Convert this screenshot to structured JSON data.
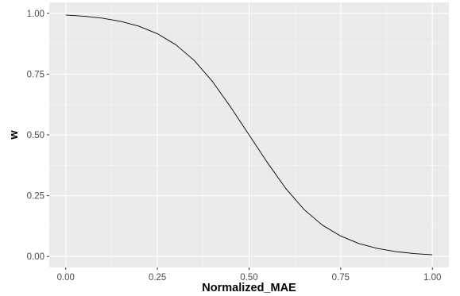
{
  "chart_data": {
    "type": "line",
    "title": "",
    "xlabel": "Normalized_MAE",
    "ylabel": "w",
    "xlim": [
      -0.045,
      1.045
    ],
    "ylim": [
      -0.045,
      1.045
    ],
    "x_ticks": [
      0,
      0.25,
      0.5,
      0.75,
      1
    ],
    "x_tick_labels": [
      "0.00",
      "0.25",
      "0.50",
      "0.75",
      "1.00"
    ],
    "y_ticks": [
      0,
      0.25,
      0.5,
      0.75,
      1
    ],
    "y_tick_labels": [
      "0.00",
      "0.25",
      "0.50",
      "0.75",
      "1.00"
    ],
    "grid": true,
    "legend": "none",
    "colors": {
      "panel_background": "#ebebeb",
      "grid_major": "#ffffff",
      "grid_minor": "#f5f5f5",
      "line": "#000000",
      "tick_label": "#4d4d4d",
      "tick_mark": "#333333"
    },
    "series": [
      {
        "x": [
          0,
          0.05,
          0.1,
          0.15,
          0.2,
          0.25,
          0.3,
          0.35,
          0.4,
          0.45,
          0.5,
          0.55,
          0.6,
          0.65,
          0.7,
          0.75,
          0.8,
          0.85,
          0.9,
          0.95,
          1
        ],
        "y": [
          0.993,
          0.988,
          0.98,
          0.967,
          0.947,
          0.916,
          0.871,
          0.807,
          0.72,
          0.614,
          0.5,
          0.386,
          0.28,
          0.193,
          0.129,
          0.084,
          0.053,
          0.033,
          0.02,
          0.012,
          0.007
        ]
      }
    ]
  }
}
